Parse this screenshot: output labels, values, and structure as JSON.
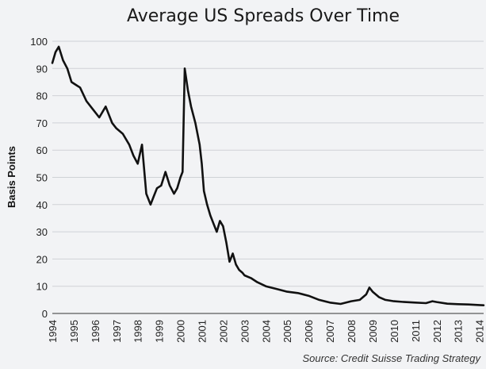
{
  "chart_data": {
    "type": "line",
    "title": "Average US Spreads Over Time",
    "ylabel": "Basis Points",
    "xlabel": "",
    "source": "Source: Credit Suisse Trading Strategy",
    "ylim": [
      0,
      100
    ],
    "xlim": [
      1994,
      2014.2
    ],
    "yticks": [
      0,
      10,
      20,
      30,
      40,
      50,
      60,
      70,
      80,
      90,
      100
    ],
    "xticks": [
      1994,
      1995,
      1996,
      1997,
      1998,
      1999,
      2000,
      2001,
      2002,
      2003,
      2004,
      2005,
      2006,
      2007,
      2008,
      2009,
      2010,
      2011,
      2012,
      2013,
      2014
    ],
    "grid": true,
    "series": [
      {
        "color": "#111111",
        "x": [
          1994.0,
          1994.15,
          1994.3,
          1994.5,
          1994.7,
          1994.9,
          1995.1,
          1995.3,
          1995.6,
          1995.9,
          1996.2,
          1996.5,
          1996.8,
          1997.0,
          1997.3,
          1997.6,
          1997.8,
          1998.0,
          1998.2,
          1998.4,
          1998.6,
          1998.75,
          1998.9,
          1999.1,
          1999.3,
          1999.5,
          1999.7,
          1999.85,
          2000.0,
          2000.1,
          2000.2,
          2000.35,
          2000.5,
          2000.7,
          2000.9,
          2001.0,
          2001.1,
          2001.25,
          2001.4,
          2001.55,
          2001.7,
          2001.85,
          2002.0,
          2002.15,
          2002.3,
          2002.45,
          2002.6,
          2002.75,
          2002.9,
          2003.0,
          2003.3,
          2003.6,
          2004.0,
          2004.5,
          2005.0,
          2005.5,
          2006.0,
          2006.5,
          2007.0,
          2007.5,
          2008.0,
          2008.4,
          2008.7,
          2008.85,
          2009.0,
          2009.3,
          2009.6,
          2010.0,
          2010.5,
          2011.0,
          2011.5,
          2011.8,
          2012.0,
          2012.5,
          2013.0,
          2013.5,
          2014.0,
          2014.2
        ],
        "y": [
          92,
          96,
          98,
          93,
          90,
          85,
          84,
          83,
          78,
          75,
          72,
          76,
          70,
          68,
          66,
          62,
          58,
          55,
          62,
          44,
          40,
          43,
          46,
          47,
          52,
          47,
          44,
          46,
          50,
          52,
          90,
          82,
          76,
          70,
          62,
          55,
          45,
          40,
          36,
          33,
          30,
          34,
          32,
          26,
          19,
          22,
          18,
          16,
          15,
          14,
          13,
          11.5,
          10,
          9,
          8,
          7.5,
          6.5,
          5,
          4,
          3.5,
          4.5,
          5,
          7,
          9.5,
          8,
          6,
          5,
          4.5,
          4.2,
          4,
          3.8,
          4.5,
          4.2,
          3.6,
          3.4,
          3.3,
          3.1,
          3.0
        ]
      }
    ]
  }
}
